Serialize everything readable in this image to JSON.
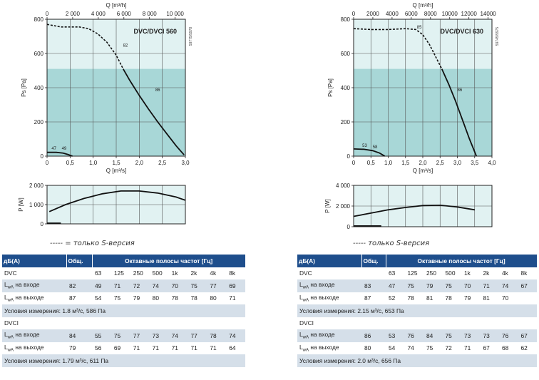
{
  "note_left": "----- = только S-версия",
  "note_right": "----- только S-версия",
  "chart_data": [
    {
      "type": "line",
      "id": "dvc560-pressure",
      "title": "DVC/DVCI 560",
      "code": "59775/5978",
      "xlabel": "Q [m³/s]",
      "x2label": "Q [m³/h]",
      "ylabel": "Ps [Pa]",
      "xlim": [
        0,
        3.0
      ],
      "ylim": [
        0,
        800
      ],
      "x2lim": [
        0,
        10800
      ],
      "xticks": [
        "0",
        "0,5",
        "1,0",
        "1,5",
        "2,0",
        "2,5",
        "3,0"
      ],
      "x2ticks": [
        "0",
        "2 000",
        "4 000",
        "6 000",
        "8 000",
        "10 000"
      ],
      "yticks": [
        "0",
        "200",
        "400",
        "600",
        "800"
      ],
      "shaded_ylim": [
        0,
        510
      ],
      "series": [
        {
          "style": "dashed",
          "x": [
            0.0,
            0.3,
            0.7,
            0.9,
            1.1,
            1.3,
            1.5,
            1.65
          ],
          "y": [
            770,
            755,
            755,
            745,
            715,
            665,
            590,
            510
          ]
        },
        {
          "style": "solid",
          "x": [
            1.65,
            1.8,
            2.0,
            2.2,
            2.4,
            2.6,
            2.8,
            2.97
          ],
          "y": [
            510,
            440,
            355,
            275,
            200,
            130,
            60,
            8
          ]
        },
        {
          "style": "solid",
          "x": [
            0.0,
            0.2,
            0.35,
            0.45,
            0.55
          ],
          "y": [
            22,
            22,
            18,
            10,
            0
          ]
        }
      ],
      "annotations": [
        {
          "text": "82",
          "x": 1.7,
          "y": 640
        },
        {
          "text": "86",
          "x": 2.4,
          "y": 380
        },
        {
          "text": "47",
          "x": 0.15,
          "y": 38
        },
        {
          "text": "49",
          "x": 0.37,
          "y": 38
        }
      ]
    },
    {
      "type": "line",
      "id": "dvc560-power",
      "xlabel": "",
      "ylabel": "P [W]",
      "xlim": [
        0,
        3.0
      ],
      "ylim": [
        0,
        2200
      ],
      "yticks": [
        "0",
        "1 000",
        "2 000"
      ],
      "series": [
        {
          "style": "solid",
          "x": [
            0.05,
            0.4,
            0.8,
            1.2,
            1.6,
            2.0,
            2.4,
            2.8,
            3.0
          ],
          "y": [
            700,
            1100,
            1450,
            1720,
            1880,
            1880,
            1760,
            1530,
            1350
          ]
        },
        {
          "style": "solid",
          "x": [
            0.0,
            0.3
          ],
          "y": [
            40,
            40
          ]
        }
      ]
    },
    {
      "type": "line",
      "id": "dvc630-pressure",
      "title": "DVC/DVCI 630",
      "code": "59745/5975",
      "xlabel": "Q [m³/s]",
      "x2label": "Q [m³/h]",
      "ylabel": "Ps [Pa]",
      "xlim": [
        0,
        4.0
      ],
      "ylim": [
        0,
        800
      ],
      "x2lim": [
        0,
        14400
      ],
      "xticks": [
        "0",
        "0,5",
        "1,0",
        "1,5",
        "2,0",
        "2,5",
        "3,0",
        "3,5",
        "4,0"
      ],
      "x2ticks": [
        "0",
        "2000",
        "4000",
        "6000",
        "8000",
        "10000",
        "12000",
        "14000"
      ],
      "yticks": [
        "0",
        "200",
        "400",
        "600",
        "800"
      ],
      "shaded_ylim": [
        0,
        510
      ],
      "series": [
        {
          "style": "dashed",
          "x": [
            0.0,
            0.5,
            1.0,
            1.5,
            1.8,
            2.0,
            2.2,
            2.4,
            2.55
          ],
          "y": [
            745,
            740,
            740,
            745,
            740,
            710,
            650,
            570,
            510
          ]
        },
        {
          "style": "solid",
          "x": [
            2.55,
            2.75,
            2.95,
            3.15,
            3.35,
            3.55
          ],
          "y": [
            510,
            420,
            320,
            210,
            100,
            0
          ]
        },
        {
          "style": "solid",
          "x": [
            0.0,
            0.3,
            0.55,
            0.75,
            0.9
          ],
          "y": [
            42,
            40,
            32,
            18,
            0
          ]
        }
      ],
      "annotations": [
        {
          "text": "85",
          "x": 1.9,
          "y": 745
        },
        {
          "text": "86",
          "x": 3.07,
          "y": 380
        },
        {
          "text": "53",
          "x": 0.32,
          "y": 55
        },
        {
          "text": "58",
          "x": 0.62,
          "y": 45
        }
      ]
    },
    {
      "type": "line",
      "id": "dvc630-power",
      "xlabel": "",
      "ylabel": "P [W]",
      "xlim": [
        0,
        4.0
      ],
      "ylim": [
        0,
        4400
      ],
      "yticks": [
        "0",
        "2 000",
        "4 000"
      ],
      "series": [
        {
          "style": "solid",
          "x": [
            0.0,
            0.5,
            1.0,
            1.5,
            2.0,
            2.5,
            3.0,
            3.5
          ],
          "y": [
            1100,
            1450,
            1800,
            2050,
            2250,
            2280,
            2100,
            1800
          ]
        },
        {
          "style": "solid",
          "x": [
            0.0,
            0.8
          ],
          "y": [
            80,
            80
          ]
        }
      ]
    }
  ],
  "tables": [
    {
      "h_db": "дБ(A)",
      "h_total": "Общ.",
      "h_bands": "Октавные полосы частот [Гц]",
      "bands": [
        "63",
        "125",
        "250",
        "500",
        "1k",
        "2k",
        "4k",
        "8k"
      ],
      "g1_name": "DVC",
      "g1_in_label": "LwA на входе",
      "g1_in_total": "82",
      "g1_in": [
        "49",
        "71",
        "72",
        "74",
        "70",
        "75",
        "77",
        "69"
      ],
      "g1_out_label": "LwA на выходе",
      "g1_out_total": "87",
      "g1_out": [
        "54",
        "75",
        "79",
        "80",
        "78",
        "78",
        "80",
        "71"
      ],
      "g1_cond": "Условия измерения: 1.8 м³/с, 586 Па",
      "g2_name": "DVCI",
      "g2_in_label": "LwA на входе",
      "g2_in_total": "84",
      "g2_in": [
        "55",
        "75",
        "77",
        "73",
        "74",
        "77",
        "78",
        "74"
      ],
      "g2_out_label": "LwA на выходе",
      "g2_out_total": "79",
      "g2_out": [
        "56",
        "69",
        "71",
        "71",
        "71",
        "71",
        "71",
        "64"
      ],
      "g2_cond": "Условия измерения: 1.79 м³/с, 611 Па"
    },
    {
      "h_db": "дБ(A)",
      "h_total": "Общ.",
      "h_bands": "Октавные полосы частот [Гц]",
      "bands": [
        "63",
        "125",
        "250",
        "500",
        "1k",
        "2k",
        "4k",
        "8k"
      ],
      "g1_name": "DVC",
      "g1_in_label": "LwA на входе",
      "g1_in_total": "83",
      "g1_in": [
        "47",
        "75",
        "79",
        "75",
        "70",
        "71",
        "74",
        "67"
      ],
      "g1_out_label": "LwA на выходе",
      "g1_out_total": "87",
      "g1_out": [
        "52",
        "78",
        "81",
        "78",
        "79",
        "81",
        "70",
        ""
      ],
      "g1_cond": "Условия измерения: 2.15 м³/с, 653 Па",
      "g2_name": "DVCI",
      "g2_in_label": "LwA на входе",
      "g2_in_total": "86",
      "g2_in": [
        "53",
        "76",
        "84",
        "75",
        "73",
        "73",
        "76",
        "67"
      ],
      "g2_out_label": "LwA на выходе",
      "g2_out_total": "80",
      "g2_out": [
        "54",
        "74",
        "75",
        "72",
        "71",
        "67",
        "68",
        "62"
      ],
      "g2_cond": "Условия измерения: 2.0 м³/с, 656 Па"
    }
  ]
}
